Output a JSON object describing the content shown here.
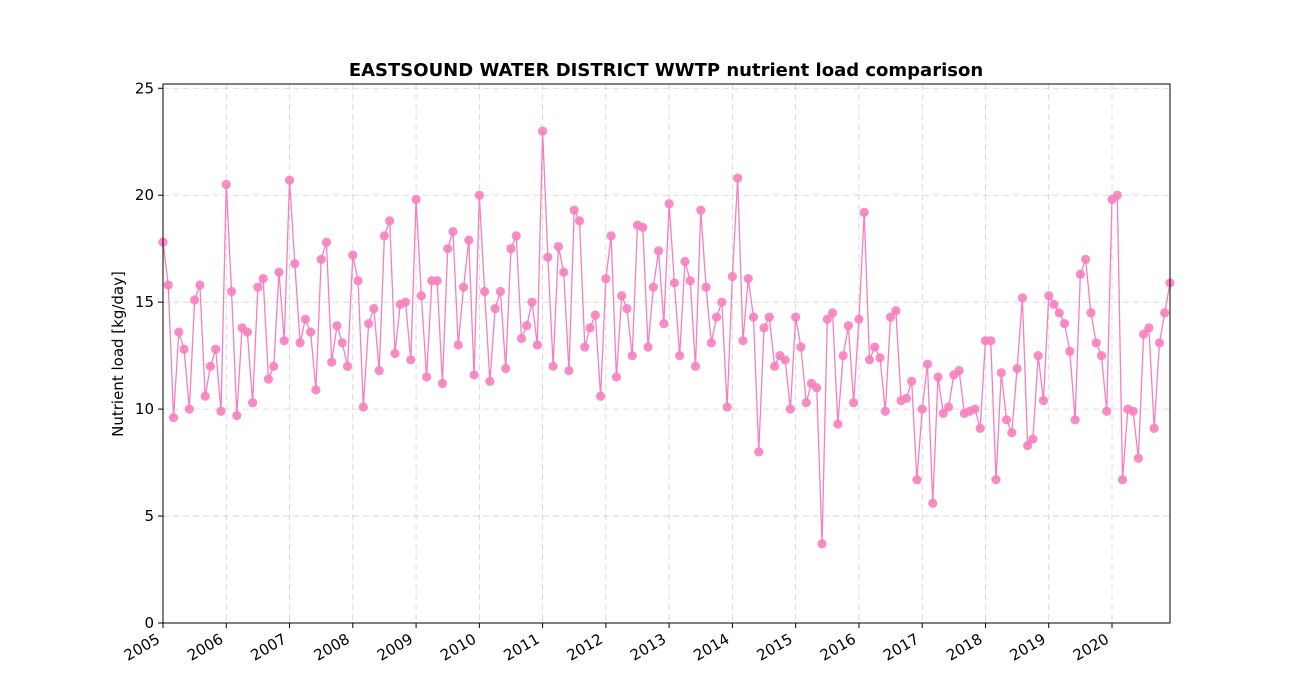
{
  "chart_data": {
    "type": "line",
    "title": "EASTSOUND WATER DISTRICT WWTP nutrient load comparison",
    "xlabel": "",
    "ylabel": "Nutrient load [kg/day]",
    "x_start": "2005-01",
    "x_frequency": "monthly",
    "xlim": [
      "2005-01",
      "2020-12"
    ],
    "ylim": [
      0,
      25.2
    ],
    "y_ticks": [
      0,
      5,
      10,
      15,
      20,
      25
    ],
    "x_ticks": [
      "2005",
      "2006",
      "2007",
      "2008",
      "2009",
      "2010",
      "2011",
      "2012",
      "2013",
      "2014",
      "2015",
      "2016",
      "2017",
      "2018",
      "2019",
      "2020"
    ],
    "grid": true,
    "line_color": "#f77fbe",
    "marker": "circle",
    "series": [
      {
        "values": [
          17.8,
          15.8,
          9.6,
          13.6,
          12.8,
          10.0,
          15.1,
          15.8,
          10.6,
          12.0,
          12.8,
          9.9,
          20.5,
          15.5,
          9.7,
          13.8,
          13.6,
          10.3,
          15.7,
          16.1,
          11.4,
          12.0,
          16.4,
          13.2,
          20.7,
          16.8,
          13.1,
          14.2,
          13.6,
          10.9,
          17.0,
          17.8,
          12.2,
          13.9,
          13.1,
          12.0,
          17.2,
          16.0,
          10.1,
          14.0,
          14.7,
          11.8,
          18.1,
          18.8,
          12.6,
          14.9,
          15.0,
          12.3,
          19.8,
          15.3,
          11.5,
          16.0,
          16.0,
          11.2,
          17.5,
          18.3,
          13.0,
          15.7,
          17.9,
          11.6,
          20.0,
          15.5,
          11.3,
          14.7,
          15.5,
          11.9,
          17.5,
          18.1,
          13.3,
          13.9,
          15.0,
          13.0,
          23.0,
          17.1,
          12.0,
          17.6,
          16.4,
          11.8,
          19.3,
          18.8,
          12.9,
          13.8,
          14.4,
          10.6,
          16.1,
          18.1,
          11.5,
          15.3,
          14.7,
          12.5,
          18.6,
          18.5,
          12.9,
          15.7,
          17.4,
          14.0,
          19.6,
          15.9,
          12.5,
          16.9,
          16.0,
          12.0,
          19.3,
          15.7,
          13.1,
          14.3,
          15.0,
          10.1,
          16.2,
          20.8,
          13.2,
          16.1,
          14.3,
          8.0,
          13.8,
          14.3,
          12.0,
          12.5,
          12.3,
          10.0,
          14.3,
          12.9,
          10.3,
          11.2,
          11.0,
          3.7,
          14.2,
          14.5,
          9.3,
          12.5,
          13.9,
          10.3,
          14.2,
          19.2,
          12.3,
          12.9,
          12.4,
          9.9,
          14.3,
          14.6,
          10.4,
          10.5,
          11.3,
          6.7,
          10.0,
          12.1,
          5.6,
          11.5,
          9.8,
          10.1,
          11.6,
          11.8,
          9.8,
          9.9,
          10.0,
          9.1,
          13.2,
          13.2,
          6.7,
          11.7,
          9.5,
          8.9,
          11.9,
          15.2,
          8.3,
          8.6,
          12.5,
          10.4,
          15.3,
          14.9,
          14.5,
          14.0,
          12.7,
          9.5,
          16.3,
          17.0,
          14.5,
          13.1,
          12.5,
          9.9,
          19.8,
          20.0,
          6.7,
          10.0,
          9.9,
          7.7,
          13.5,
          13.8,
          9.1,
          13.1,
          14.5,
          15.9
        ]
      }
    ]
  }
}
